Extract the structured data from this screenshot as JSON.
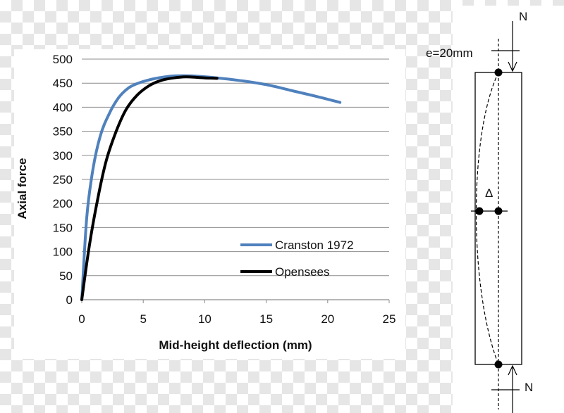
{
  "chart_data": {
    "type": "line",
    "title": "",
    "xlabel": "Mid-height deflection (mm)",
    "ylabel": "Axial force",
    "xlim": [
      0,
      25
    ],
    "ylim": [
      0,
      500
    ],
    "xticks": [
      "0",
      "5",
      "10",
      "15",
      "20",
      "25"
    ],
    "yticks": [
      "0",
      "50",
      "100",
      "150",
      "200",
      "250",
      "300",
      "350",
      "400",
      "450",
      "500"
    ],
    "grid": "horizontal",
    "legend_position": "bottom-right",
    "series": [
      {
        "name": "Cranston 1972",
        "color": "#4f81bd",
        "x": [
          0,
          0.4,
          0.9,
          1.5,
          2.2,
          3.0,
          3.8,
          4.6,
          5.5,
          6.5,
          7.5,
          9.0,
          11.0,
          13.0,
          15.0,
          17.0,
          19.0,
          21.0
        ],
        "y": [
          0,
          170,
          270,
          340,
          385,
          420,
          440,
          450,
          457,
          462,
          465,
          465,
          461,
          455,
          447,
          435,
          423,
          410
        ]
      },
      {
        "name": "Opensees",
        "color": "#000000",
        "x": [
          0,
          0.6,
          1.3,
          2.0,
          2.8,
          3.6,
          4.5,
          5.5,
          6.5,
          7.5,
          8.5,
          10.0,
          11.0
        ],
        "y": [
          0,
          110,
          210,
          290,
          350,
          395,
          425,
          445,
          456,
          461,
          463,
          461,
          460
        ]
      }
    ]
  },
  "diagram": {
    "top_load_label": "N",
    "bottom_load_label": "N",
    "eccentricity_label": "e=20mm",
    "deflection_label": "Δ"
  }
}
